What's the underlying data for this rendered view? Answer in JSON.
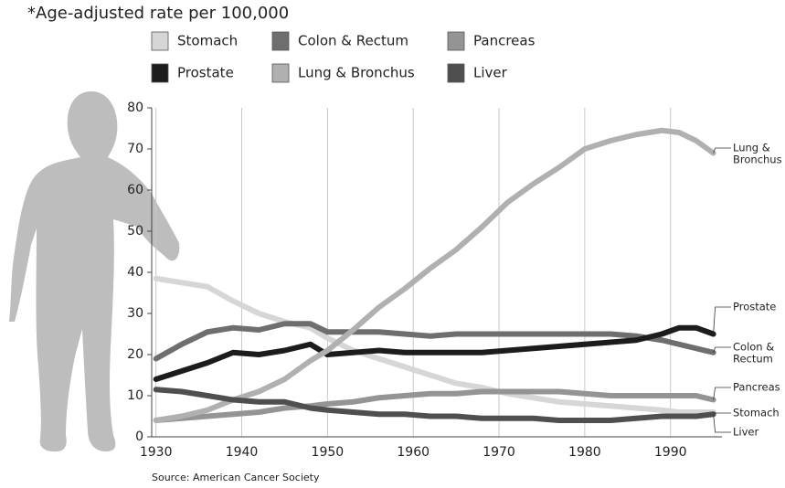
{
  "chart_data": {
    "type": "line",
    "subtitle": "*Age-adjusted rate per 100,000",
    "source": "Source: American Cancer Society",
    "x": [
      1930,
      1933,
      1936,
      1939,
      1942,
      1945,
      1948,
      1950,
      1953,
      1956,
      1959,
      1962,
      1965,
      1968,
      1971,
      1974,
      1977,
      1980,
      1983,
      1986,
      1989,
      1991,
      1993,
      1995
    ],
    "xlim": [
      1929.5,
      1996
    ],
    "xticks": [
      1930,
      1940,
      1950,
      1960,
      1970,
      1980,
      1990
    ],
    "ylim": [
      0,
      80
    ],
    "yticks": [
      0,
      10,
      20,
      30,
      40,
      50,
      60,
      70,
      80
    ],
    "grid": "x",
    "series": [
      {
        "name": "Stomach",
        "color": "#d6d6d6",
        "end_label": [
          "Stomach"
        ],
        "values": [
          38.5,
          37.5,
          36.5,
          33,
          30,
          28,
          26.5,
          24,
          21,
          19,
          17,
          15,
          13,
          12,
          10.5,
          9.5,
          8.5,
          8,
          7.5,
          7,
          6.5,
          6,
          6,
          6
        ]
      },
      {
        "name": "Colon & Rectum",
        "color": "#6e6e6e",
        "end_label": [
          "Colon &",
          "Rectum"
        ],
        "values": [
          19,
          22.5,
          25.5,
          26.5,
          26,
          27.5,
          27.5,
          25.5,
          25.5,
          25.5,
          25,
          24.5,
          25,
          25,
          25,
          25,
          25,
          25,
          25,
          24.5,
          23.5,
          22.5,
          21.5,
          20.5
        ]
      },
      {
        "name": "Pancreas",
        "color": "#949494",
        "end_label": [
          "Pancreas"
        ],
        "values": [
          4,
          4.5,
          5,
          5.5,
          6,
          7,
          7.5,
          8,
          8.5,
          9.5,
          10,
          10.5,
          10.5,
          11,
          11,
          11,
          11,
          10.5,
          10,
          10,
          10,
          10,
          10,
          9
        ]
      },
      {
        "name": "Prostate",
        "color": "#1c1c1c",
        "end_label": [
          "Prostate"
        ],
        "values": [
          14,
          16,
          18,
          20.5,
          20,
          21,
          22.5,
          20,
          20.5,
          21,
          20.5,
          20.5,
          20.5,
          20.5,
          21,
          21.5,
          22,
          22.5,
          23,
          23.5,
          25,
          26.5,
          26.5,
          25
        ]
      },
      {
        "name": "Lung & Bronchus",
        "color": "#b0b0b0",
        "end_label": [
          "Lung &",
          "Bronchus"
        ],
        "values": [
          4,
          5,
          6.5,
          9,
          11,
          14,
          18.5,
          21,
          26,
          31.5,
          36,
          41,
          45.5,
          51,
          57,
          61.5,
          65.5,
          70,
          72,
          73.5,
          74.5,
          74,
          72,
          69
        ]
      },
      {
        "name": "Liver",
        "color": "#4f4f4f",
        "end_label": [
          "Liver"
        ],
        "values": [
          11.5,
          11,
          10,
          9,
          8.5,
          8.5,
          7,
          6.5,
          6,
          5.5,
          5.5,
          5,
          5,
          4.5,
          4.5,
          4.5,
          4,
          4,
          4,
          4.5,
          5,
          5,
          5,
          5.5
        ]
      }
    ]
  }
}
